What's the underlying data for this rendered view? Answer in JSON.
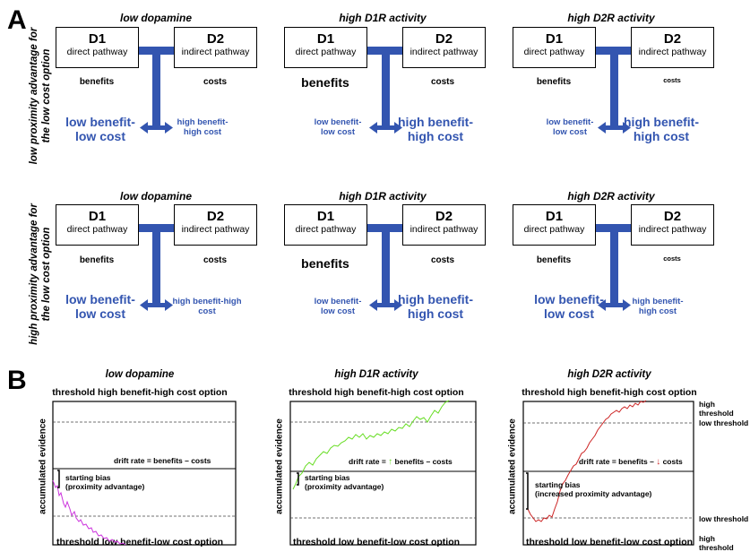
{
  "panel_a": {
    "letter": "A",
    "row_labels": [
      "low proximity advantage for the low cost option",
      "high proximity advantage for the low cost option"
    ],
    "columns": [
      {
        "title": "low dopamine"
      },
      {
        "title": "high D1R activity"
      },
      {
        "title": "high D2R activity"
      }
    ],
    "d1_label": "D1",
    "d1_sub": "direct pathway",
    "d2_label": "D2",
    "d2_sub": "indirect pathway",
    "benefits": "benefits",
    "costs": "costs",
    "rows": [
      [
        {
          "left": "low benefit-\nlow cost",
          "right": "high benefit-\nhigh cost"
        },
        {
          "left": "low benefit-\nlow cost",
          "right": "high benefit-\nhigh cost"
        },
        {
          "left": "low benefit-\nlow cost",
          "right": "high benefit-\nhigh cost"
        }
      ],
      [
        {
          "left": "low benefit-\nlow cost",
          "right": "high benefit-high\ncost"
        },
        {
          "left": "low benefit-\nlow cost",
          "right": "high benefit-\nhigh cost"
        },
        {
          "left": "low benefit-\nlow cost",
          "right": "high benefit-\nhigh cost"
        }
      ]
    ]
  },
  "panel_b": {
    "letter": "B",
    "y_label": "accumulated evidence",
    "top_threshold": "threshold high benefit-high cost option",
    "bottom_threshold": "threshold low benefit-low cost option",
    "plots": [
      {
        "title": "low dopamine",
        "drift": "drift rate = benefits – costs",
        "bias1": "starting bias",
        "bias2": "(proximity advantage)",
        "color": "#cc33dd"
      },
      {
        "title": "high D1R activity",
        "drift_a": "drift rate = ",
        "drift_arrow": "↑",
        "drift_b": " benefits – costs",
        "bias1": "starting bias",
        "bias2": "(proximity advantage)",
        "color": "#66dd22"
      },
      {
        "title": "high D2R activity",
        "drift_a": "drift rate = benefits – ",
        "drift_arrow": "↓",
        "drift_b": " costs",
        "bias1": "starting bias",
        "bias2": "(increased proximity advantage)",
        "color": "#cc2222"
      }
    ],
    "side_labels": {
      "high_threshold": "high threshold",
      "low_threshold": "low threshold"
    }
  }
}
